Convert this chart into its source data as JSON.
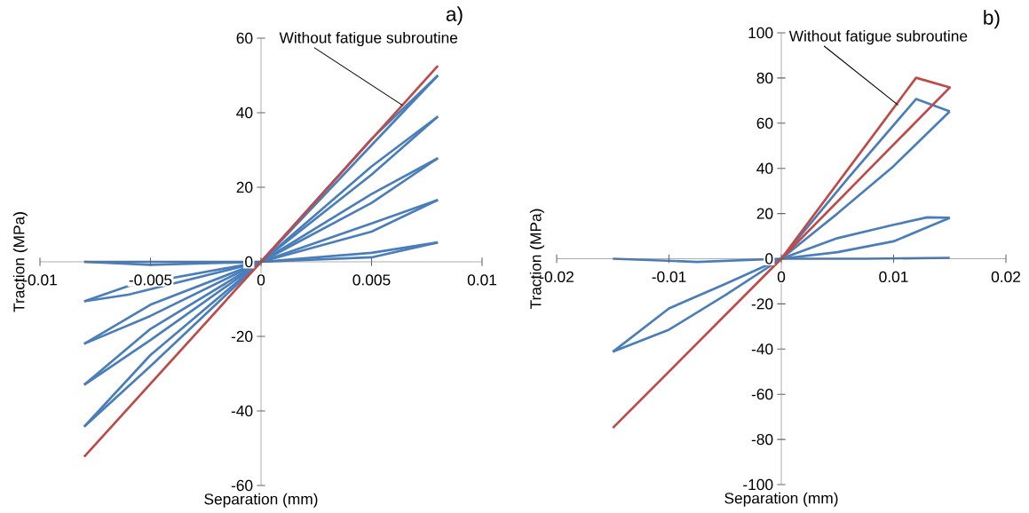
{
  "chart_data": [
    {
      "type": "line",
      "xlabel": "Separation (mm)",
      "ylabel": "Traction (MPa)",
      "xlim": [
        -0.01,
        0.01
      ],
      "ylim": [
        -60,
        60
      ],
      "xticks": [
        -0.01,
        -0.005,
        0,
        0.005,
        0.01
      ],
      "yticks": [
        -60,
        -40,
        -20,
        0,
        20,
        40,
        60
      ],
      "marker": "none",
      "line_style": "solid",
      "annotations": [
        {
          "text": "Without fatigue subroutine",
          "x": 0.0064,
          "y": 42
        },
        "a)"
      ],
      "series": [
        {
          "color": "#4a7ebb",
          "x": [
            -0.008,
            -0.005,
            0,
            0.005,
            0.008
          ],
          "values": [
            -44.2,
            -25,
            0,
            31.3,
            50
          ]
        },
        {
          "color": "#4a7ebb",
          "x": [
            -0.008,
            -0.005,
            0,
            0.005,
            0.008
          ],
          "values": [
            -44.2,
            -28,
            0,
            33,
            50
          ]
        },
        {
          "color": "#4a7ebb",
          "x": [
            -0.008,
            -0.005,
            0,
            0.005,
            0.008
          ],
          "values": [
            -33,
            -18,
            0,
            23.4,
            39
          ]
        },
        {
          "color": "#4a7ebb",
          "x": [
            -0.008,
            -0.005,
            0,
            0.005,
            0.008
          ],
          "values": [
            -33,
            -21,
            0,
            25.6,
            39
          ]
        },
        {
          "color": "#4a7ebb",
          "x": [
            -0.008,
            -0.005,
            0,
            0.005,
            0.008
          ],
          "values": [
            -22,
            -11.5,
            0,
            15.8,
            27.8
          ]
        },
        {
          "color": "#4a7ebb",
          "x": [
            -0.008,
            -0.005,
            0,
            0.005,
            0.008
          ],
          "values": [
            -22,
            -14.5,
            0,
            18.2,
            27.8
          ]
        },
        {
          "color": "#4a7ebb",
          "x": [
            -0.008,
            -0.006,
            0,
            0.005,
            0.008
          ],
          "values": [
            -10.6,
            -6.5,
            0,
            8.1,
            16.6
          ]
        },
        {
          "color": "#4a7ebb",
          "x": [
            -0.008,
            -0.006,
            0,
            0.005,
            0.008
          ],
          "values": [
            -10.6,
            -8.8,
            0,
            10.3,
            16.6
          ]
        },
        {
          "color": "#4a7ebb",
          "x": [
            -0.008,
            -0.005,
            0,
            0.005,
            0.008
          ],
          "values": [
            0,
            -0.8,
            0,
            1.2,
            5.2
          ]
        },
        {
          "color": "#4a7ebb",
          "x": [
            -0.008,
            -0.005,
            0,
            0.005,
            0.008
          ],
          "values": [
            0,
            0,
            0,
            2.4,
            5.2
          ]
        },
        {
          "color": "#be4b48",
          "x": [
            -0.008,
            0,
            0.008
          ],
          "values": [
            -52.3,
            0,
            52.6
          ]
        }
      ]
    },
    {
      "type": "line",
      "xlabel": "Separation (mm)",
      "ylabel": "Traction (MPa)",
      "xlim": [
        -0.02,
        0.02
      ],
      "ylim": [
        -100,
        100
      ],
      "xticks": [
        -0.02,
        -0.01,
        0,
        0.01,
        0.02
      ],
      "yticks": [
        -100,
        -80,
        -60,
        -40,
        -20,
        0,
        20,
        40,
        60,
        80,
        100
      ],
      "marker": "none",
      "line_style": "solid",
      "annotations": [
        {
          "text": "Without fatigue subroutine",
          "x": 0.0104,
          "y": 68
        },
        "b)"
      ],
      "series": [
        {
          "color": "#4a7ebb",
          "x": [
            0,
            0.006,
            0.012,
            0.015
          ],
          "values": [
            0,
            36,
            70.7,
            65.2
          ]
        },
        {
          "color": "#4a7ebb",
          "x": [
            0,
            0.005,
            0.01,
            0.015
          ],
          "values": [
            0,
            20,
            41,
            65.2
          ]
        },
        {
          "color": "#4a7ebb",
          "x": [
            -0.015,
            -0.01,
            -0.005,
            0,
            0.005,
            0.01,
            0.013,
            0.015
          ],
          "values": [
            -41.2,
            -22,
            -11.2,
            0,
            9.1,
            15,
            18.3,
            18.1
          ]
        },
        {
          "color": "#4a7ebb",
          "x": [
            -0.015,
            -0.01,
            -0.005,
            0,
            0.005,
            0.01,
            0.015
          ],
          "values": [
            -41.2,
            -31.4,
            -16.2,
            0,
            2.9,
            7.7,
            18.1
          ]
        },
        {
          "color": "#4a7ebb",
          "x": [
            -0.015,
            -0.0075,
            0,
            0.0075,
            0.015
          ],
          "values": [
            0,
            -1.4,
            0,
            0,
            0.4
          ]
        },
        {
          "color": "#be4b48",
          "x": [
            0,
            0.012,
            0.015,
            0,
            -0.015
          ],
          "values": [
            0,
            80.1,
            75.8,
            0,
            -74.9
          ]
        }
      ]
    }
  ]
}
